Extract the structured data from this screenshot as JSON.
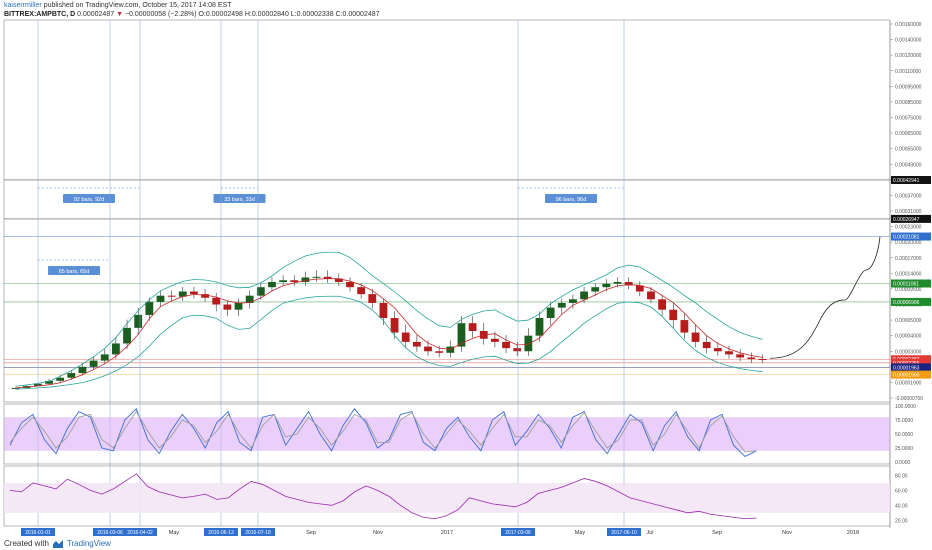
{
  "header": {
    "author": "kaiserrmiller",
    "published": "published on TradingView.com, October 15, 2017 14:08 EST",
    "symbol": "BITTREX:AMPBTC, D",
    "last": "0.00002487",
    "change": "−0.00000058 (−2.28%)",
    "ohlc": "O:0.00002498 H:0.00002840 L:0.00002338 C:0.00002487"
  },
  "footer": {
    "created_with": "Created with",
    "brand": "TradingView"
  },
  "chart_data": [
    {
      "type": "candlestick",
      "pane": "price",
      "symbol": "BITTREX:AMPBTC",
      "interval": "D",
      "ylim": [
        -7e-06,
        0.00016
      ],
      "y_ticks": [
        "0.00160000",
        "0.00140000",
        "0.00120000",
        "0.00110000",
        "0.00095000",
        "0.00085000",
        "0.00075000",
        "0.00065000",
        "0.00055000",
        "0.00049000",
        "0.00043000",
        "0.00037000",
        "0.00031000",
        "0.00023000",
        "0.00020000",
        "0.00017000",
        "0.00014000",
        "0.00009500",
        "0.00006500",
        "0.00005000",
        "0.00004000",
        "0.00003000",
        "0.00002000",
        "0.00001000",
        "-0.00000700"
      ],
      "series_close_values": [
        4e-06,
        6e-06,
        8.5e-06,
        1.1e-05,
        1.3e-05,
        1.6e-05,
        2e-05,
        2.4e-05,
        2.8e-05,
        3.5e-05,
        4.5e-05,
        5.5e-05,
        7e-05,
        8.2e-05,
        8e-05,
        9e-05,
        8.5e-05,
        7.8e-05,
        6.5e-05,
        6e-05,
        6.8e-05,
        8.2e-05,
        0.0001,
        0.000115,
        0.00012,
        0.000115,
        0.000128,
        0.00013,
        0.000125,
        0.000115,
        0.0001,
        8.5e-05,
        6.8e-05,
        5.2e-05,
        4.2e-05,
        3.6e-05,
        3.3e-05,
        3e-05,
        2.9e-05,
        3.3e-05,
        4.8e-05,
        4.3e-05,
        3.8e-05,
        3.6e-05,
        3.2e-05,
        3e-05,
        4e-05,
        5.2e-05,
        6.2e-05,
        6.8e-05,
        7.5e-05,
        9e-05,
        0.0001,
        0.00011,
        0.000115,
        0.000105,
        9e-05,
        7.5e-05,
        6e-05,
        5e-05,
        4.2e-05,
        3.6e-05,
        3.2e-05,
        3e-05,
        2.8e-05,
        2.6e-05,
        2.5e-05,
        2.49e-05
      ],
      "price_labels": [
        {
          "value": 0.00042941,
          "text": "0.00042941",
          "color": "#111111"
        },
        {
          "value": 0.00026947,
          "text": "0.00026947",
          "color": "#111111"
        },
        {
          "value": 0.00021081,
          "text": "0.00021081",
          "color": "#2f6fcf"
        },
        {
          "value": 0.00011061,
          "text": "0.00011061",
          "color": "#1e8c2b"
        },
        {
          "value": 6.996e-05,
          "text": "0.00006996",
          "color": "#1e8c2b"
        },
        {
          "value": 2.487e-05,
          "text": "0.00002487",
          "color": "#e53935"
        },
        {
          "value": 2.255e-05,
          "text": "0.00002255",
          "color": "#e53935"
        },
        {
          "value": 1.963e-05,
          "text": "0.00001963",
          "color": "#1a237e"
        },
        {
          "value": 1.5e-05,
          "text": "0.00001500",
          "color": "#f39c12"
        }
      ],
      "bar_ranges": [
        {
          "label": "65 bars, 65d",
          "from": "2016-01-01",
          "to": "2016-03-06"
        },
        {
          "label": "92 bars, 92d",
          "from": "2016-01-01",
          "to": "2016-04-02"
        },
        {
          "label": "33 bars, 33d",
          "from": "2016-06-13",
          "to": "2016-07-18"
        },
        {
          "label": "96 bars, 96d",
          "from": "2017-03-06",
          "to": "2017-06-10"
        }
      ],
      "projection_target": 0.00021081
    },
    {
      "type": "line",
      "pane": "stochastic",
      "ylim": [
        0,
        100
      ],
      "y_ticks": [
        "100.0000",
        "75.0000",
        "50.0000",
        "25.0000",
        "0.0000"
      ],
      "band": [
        20,
        80
      ],
      "series": [
        {
          "color": "#3b6fd8",
          "values": [
            30,
            70,
            85,
            40,
            15,
            60,
            90,
            80,
            25,
            20,
            75,
            95,
            40,
            15,
            55,
            85,
            60,
            25,
            70,
            90,
            35,
            20,
            80,
            85,
            30,
            60,
            90,
            50,
            20,
            65,
            95,
            70,
            25,
            40,
            85,
            90,
            35,
            20,
            60,
            80,
            45,
            20,
            75,
            90,
            30,
            55,
            85,
            60,
            25,
            80,
            90,
            40,
            15,
            50,
            85,
            70,
            20,
            65,
            90,
            45,
            20,
            75,
            85,
            30,
            10,
            20
          ]
        },
        {
          "color": "#9e9e9e",
          "values": [
            35,
            60,
            80,
            55,
            25,
            45,
            80,
            85,
            40,
            25,
            60,
            90,
            55,
            25,
            45,
            75,
            65,
            35,
            55,
            85,
            50,
            25,
            65,
            85,
            45,
            50,
            80,
            60,
            30,
            55,
            85,
            75,
            35,
            35,
            75,
            88,
            50,
            25,
            50,
            75,
            55,
            30,
            60,
            85,
            45,
            45,
            75,
            65,
            35,
            65,
            88,
            55,
            25,
            40,
            75,
            75,
            30,
            50,
            85,
            55,
            25,
            65,
            82,
            45,
            18,
            20
          ]
        }
      ]
    },
    {
      "type": "line",
      "pane": "rsi",
      "ylim": [
        15,
        90
      ],
      "y_ticks": [
        "80.00",
        "60.00",
        "40.00",
        "20.00"
      ],
      "band": [
        30,
        70
      ],
      "series": [
        {
          "color": "#9c27b0",
          "values": [
            60,
            58,
            70,
            66,
            62,
            75,
            68,
            60,
            55,
            62,
            72,
            82,
            65,
            58,
            54,
            50,
            52,
            55,
            48,
            50,
            62,
            72,
            68,
            60,
            52,
            48,
            44,
            42,
            40,
            46,
            58,
            66,
            60,
            52,
            40,
            30,
            24,
            22,
            26,
            34,
            50,
            46,
            42,
            40,
            38,
            44,
            56,
            60,
            64,
            70,
            76,
            72,
            66,
            58,
            50,
            46,
            42,
            38,
            34,
            30,
            32,
            28,
            26,
            24,
            22,
            23
          ]
        }
      ]
    }
  ],
  "x_axis": {
    "labels": [
      "Mar",
      "May",
      "Sep",
      "Nov",
      "2017",
      "May",
      "Jul",
      "Sep",
      "Nov",
      "2018"
    ],
    "highlight_labels": [
      "2016-01-01",
      "2016-03-06",
      "2016-04-02",
      "2016-06-13",
      "2016-07-18",
      "2017-03-06",
      "2017-06-10"
    ]
  }
}
